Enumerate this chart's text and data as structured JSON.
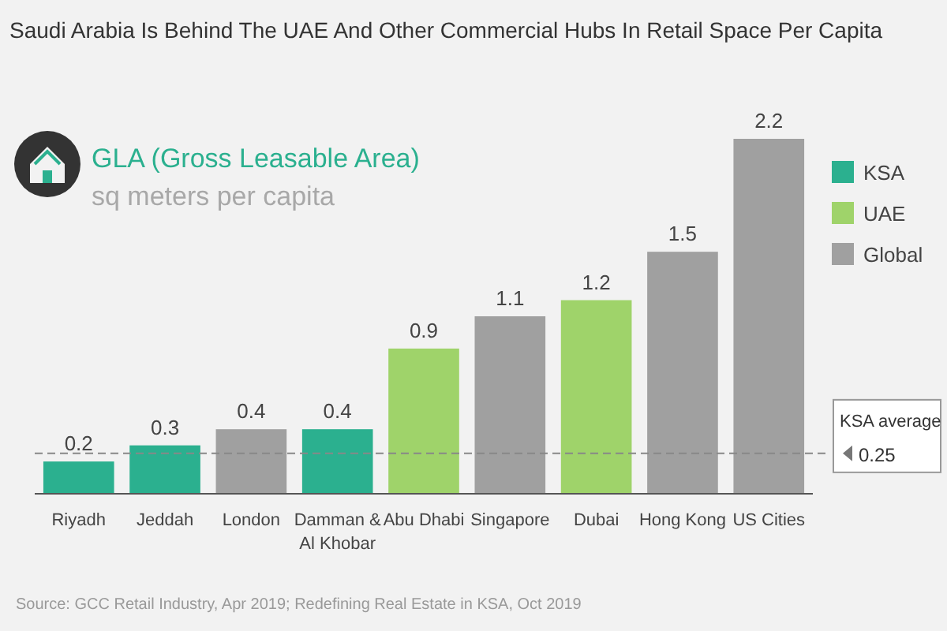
{
  "chart_data": {
    "type": "bar",
    "title": "Saudi Arabia Is Behind The UAE And Other Commercial Hubs In Retail Space Per Capita",
    "subtitle": "GLA (Gross Leasable Area)",
    "ylabel": "sq meters per capita",
    "categories": [
      "Riyadh",
      "Jeddah",
      "London",
      "Damman & Al Khobar",
      "Abu Dhabi",
      "Singapore",
      "Dubai",
      "Hong Kong",
      "US Cities"
    ],
    "series": [
      {
        "name": "KSA",
        "color": "#2bb08f",
        "values": [
          0.2,
          0.3,
          null,
          0.4,
          null,
          null,
          null,
          null,
          null
        ]
      },
      {
        "name": "UAE",
        "color": "#9fd36a",
        "values": [
          null,
          null,
          null,
          null,
          0.9,
          null,
          1.2,
          null,
          null
        ]
      },
      {
        "name": "Global",
        "color": "#a0a0a0",
        "values": [
          null,
          null,
          0.4,
          null,
          null,
          1.1,
          null,
          1.5,
          2.2
        ]
      }
    ],
    "data_labels": true,
    "legend": "right",
    "grid": false,
    "ref_lines": [
      {
        "axis": "y",
        "value": 0.25,
        "label": "KSA average 0.25",
        "color": "#888888",
        "line_style": "dashed"
      }
    ],
    "annotations": [
      "Source: GCC Retail Industry, Apr 2019; Redefining Real Estate in KSA, Oct 2019"
    ]
  }
}
